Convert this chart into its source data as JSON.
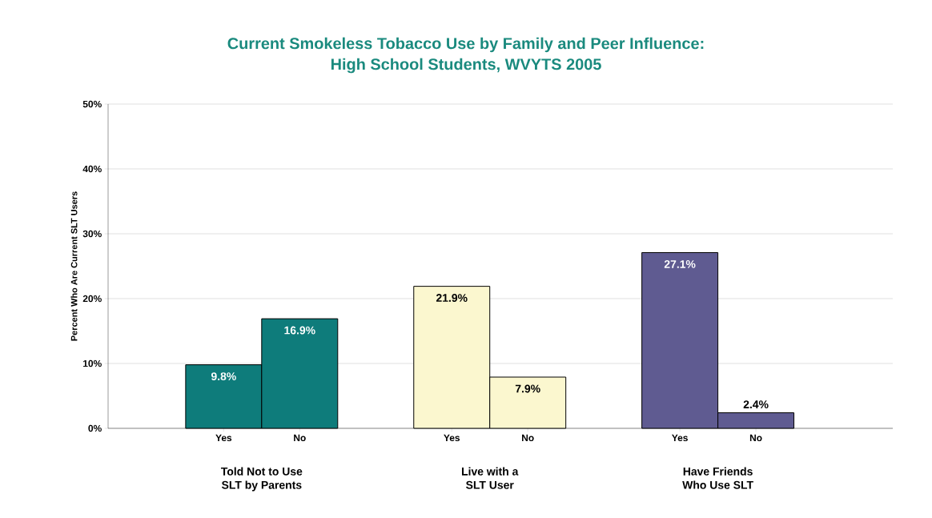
{
  "chart_data": {
    "type": "bar",
    "title": "Current Smokeless Tobacco Use by Family and Peer Influence:\nHigh School Students, WVYTS 2005",
    "ylabel": "Percent Who Are Current SLT Users",
    "categories": [
      "Yes",
      "No",
      "Yes",
      "No",
      "Yes",
      "No"
    ],
    "values": [
      9.8,
      16.9,
      21.9,
      7.9,
      27.1,
      2.4
    ],
    "colors": [
      "#0e7c7b",
      "#0e7c7b",
      "#fbf7cf",
      "#fbf7cf",
      "#5f5b91",
      "#5f5b91"
    ],
    "value_labels": [
      "9.8%",
      "16.9%",
      "21.9%",
      "7.9%",
      "27.1%",
      "2.4%"
    ],
    "annotations": [
      "Told Not to Use\nSLT by Parents",
      "Live with a\nSLT User",
      "Have Friends\nWho Use SLT"
    ],
    "ylim": [
      0,
      50
    ],
    "yticks": [
      {
        "value": 0,
        "label": "0%"
      },
      {
        "value": 10,
        "label": "10%"
      },
      {
        "value": 20,
        "label": "20%"
      },
      {
        "value": 30,
        "label": "30%"
      },
      {
        "value": 40,
        "label": "40%"
      },
      {
        "value": 50,
        "label": "50%"
      }
    ],
    "grid": "y"
  }
}
